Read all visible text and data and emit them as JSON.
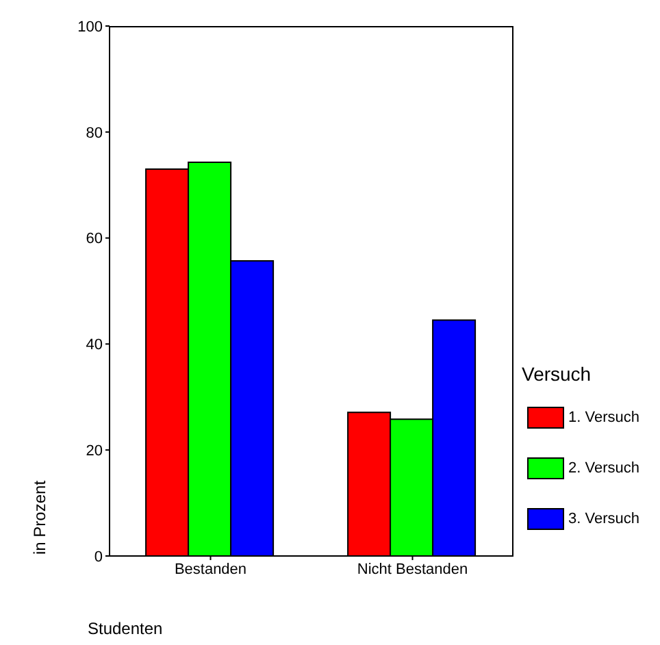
{
  "chart_data": {
    "type": "bar",
    "categories": [
      "Bestanden",
      "Nicht Bestanden"
    ],
    "series": [
      {
        "name": "1. Versuch",
        "color": "#ff0000",
        "values": [
          73,
          27.1
        ]
      },
      {
        "name": "2. Versuch",
        "color": "#00ff00",
        "values": [
          74.3,
          25.8
        ]
      },
      {
        "name": "3. Versuch",
        "color": "#0000ff",
        "values": [
          55.7,
          44.5
        ]
      }
    ],
    "ylim": [
      0,
      100
    ],
    "yticks": [
      0,
      20,
      40,
      60,
      80,
      100
    ],
    "xlabel": "Studenten",
    "ylabel": "in Prozent",
    "legend_title": "Versuch",
    "legend": "right",
    "grid": false
  }
}
